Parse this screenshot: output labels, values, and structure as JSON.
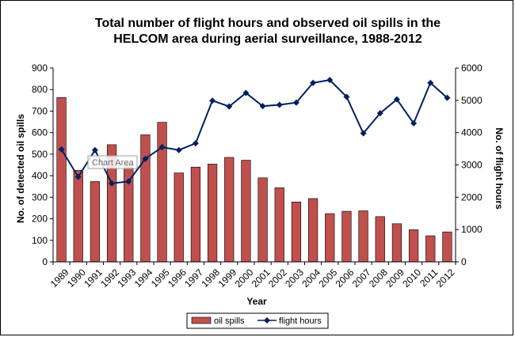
{
  "chart_data": {
    "type": "bar+line",
    "title_lines": [
      "Total number of flight hours and observed oil spills in the",
      "HELCOM area during aerial surveillance, 1988-2012"
    ],
    "xlabel": "Year",
    "ylabel_left": "No. of detected oil spills",
    "ylabel_right": "No. of flight hours",
    "categories": [
      "1989",
      "1990",
      "1991",
      "1992",
      "1993",
      "1994",
      "1995",
      "1996",
      "1997",
      "1998",
      "1999",
      "2000",
      "2001",
      "2002",
      "2003",
      "2004",
      "2005",
      "2006",
      "2007",
      "2008",
      "2009",
      "2010",
      "2011",
      "2012"
    ],
    "ylim_left": [
      0,
      900
    ],
    "yticks_left": [
      0,
      100,
      200,
      300,
      400,
      500,
      600,
      700,
      800,
      900
    ],
    "ylim_right": [
      0,
      6000
    ],
    "yticks_right": [
      0,
      1000,
      2000,
      3000,
      4000,
      5000,
      6000
    ],
    "series": [
      {
        "name": "oil spills",
        "type": "bar",
        "axis": "left",
        "color": "#c0504d",
        "values": [
          763,
          425,
          373,
          544,
          455,
          590,
          648,
          413,
          440,
          454,
          485,
          472,
          390,
          344,
          278,
          294,
          224,
          235,
          237,
          210,
          177,
          149,
          121,
          139
        ]
      },
      {
        "name": "flight hours",
        "type": "line",
        "axis": "right",
        "color": "#002060",
        "values": [
          3480,
          2630,
          3460,
          2430,
          2490,
          3190,
          3550,
          3460,
          3670,
          4990,
          4810,
          5230,
          4820,
          4860,
          4930,
          5540,
          5630,
          5110,
          3980,
          4600,
          5030,
          4290,
          5540,
          5080
        ]
      }
    ],
    "tooltip": "Chart Area",
    "grid": false,
    "legend_position": "bottom"
  }
}
